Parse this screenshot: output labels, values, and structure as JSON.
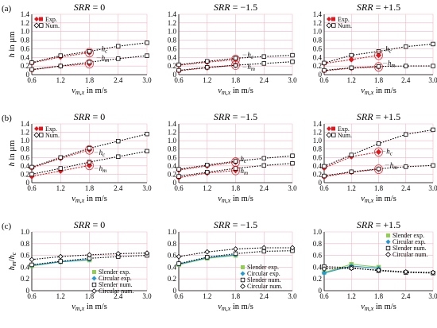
{
  "figure": {
    "background": "#ffffff"
  },
  "chart_data": [
    {
      "row": 0,
      "col": 0,
      "panel_label": "(a)",
      "title_var": "SRR",
      "title_rest": " = 0",
      "type": "line",
      "ylabel": "h in µm",
      "xlabel": "v",
      "xlabel_sub": "m,x",
      "xlabel_rest": " in m/s",
      "xlim": [
        0.6,
        3.0
      ],
      "ylim": [
        0,
        1.4
      ],
      "xticks": [
        "0.6",
        "1.2",
        "1.8",
        "2.4",
        "3.0"
      ],
      "yticks": [
        "0",
        "0.2",
        "0.4",
        "0.6",
        "0.8",
        "1.0",
        "1.2",
        "1.4"
      ],
      "legend": [
        "Exp.",
        "Num."
      ],
      "series": [
        {
          "name": "Exp.",
          "group": "hc",
          "kind": "exp",
          "x": [
            0.6,
            1.2,
            1.8
          ],
          "y": [
            0.27,
            0.41,
            0.51
          ]
        },
        {
          "name": "Exp.",
          "group": "hm",
          "kind": "exp",
          "x": [
            0.6,
            1.2,
            1.8
          ],
          "y": [
            0.11,
            0.2,
            0.25
          ]
        },
        {
          "name": "Num.",
          "group": "hc",
          "kind": "num",
          "x": [
            0.6,
            1.2,
            1.8,
            2.4,
            3.0
          ],
          "y": [
            0.28,
            0.44,
            0.54,
            0.66,
            0.74
          ]
        },
        {
          "name": "Num.",
          "group": "hm",
          "kind": "num",
          "x": [
            0.6,
            1.2,
            1.8,
            2.4,
            3.0
          ],
          "y": [
            0.12,
            0.2,
            0.29,
            0.37,
            0.44
          ]
        }
      ],
      "annotations": [
        {
          "text": "h",
          "sub": "c",
          "x": 2.05,
          "y": 0.6
        },
        {
          "text": "h",
          "sub": "m",
          "x": 2.05,
          "y": 0.39
        }
      ]
    },
    {
      "row": 0,
      "col": 1,
      "panel_label": "",
      "title_var": "SRR",
      "title_rest": " = −1.5",
      "type": "line",
      "ylabel": "",
      "xlabel": "v",
      "xlabel_sub": "m,x",
      "xlabel_rest": " in m/s",
      "xlim": [
        0.6,
        3.0
      ],
      "ylim": [
        0,
        1.4
      ],
      "xticks": [
        "0.6",
        "1.2",
        "1.8",
        "2.4",
        "3.0"
      ],
      "yticks": [
        "0",
        "0.2",
        "0.4",
        "0.6",
        "0.8",
        "1.0",
        "1.2",
        "1.4"
      ],
      "legend": [],
      "series": [
        {
          "name": "Exp.",
          "group": "hc",
          "kind": "exp",
          "x": [
            0.6,
            1.2,
            1.8
          ],
          "y": [
            0.22,
            0.29,
            0.35
          ]
        },
        {
          "name": "Exp.",
          "group": "hm",
          "kind": "exp",
          "x": [
            0.6,
            1.2,
            1.8
          ],
          "y": [
            0.09,
            0.16,
            0.22
          ]
        },
        {
          "name": "Num.",
          "group": "hc",
          "kind": "num",
          "x": [
            0.6,
            1.2,
            1.8,
            2.4,
            3.0
          ],
          "y": [
            0.23,
            0.31,
            0.38,
            0.42,
            0.45
          ]
        },
        {
          "name": "Num.",
          "group": "hm",
          "kind": "num",
          "x": [
            0.6,
            1.2,
            1.8,
            2.4,
            3.0
          ],
          "y": [
            0.1,
            0.17,
            0.22,
            0.26,
            0.3
          ]
        }
      ],
      "annotations": [
        {
          "text": "h",
          "sub": "c",
          "x": 2.05,
          "y": 0.46
        },
        {
          "text": "h",
          "sub": "m",
          "x": 2.05,
          "y": 0.18
        }
      ]
    },
    {
      "row": 0,
      "col": 2,
      "panel_label": "",
      "title_var": "SRR",
      "title_rest": " = +1.5",
      "type": "line",
      "ylabel": "",
      "xlabel": "v",
      "xlabel_sub": "m,x",
      "xlabel_rest": " in m/s",
      "xlim": [
        0.6,
        3.0
      ],
      "ylim": [
        0,
        1.4
      ],
      "xticks": [
        "0.6",
        "1.2",
        "1.8",
        "2.4",
        "3.0"
      ],
      "yticks": [
        "0",
        "0.2",
        "0.4",
        "0.6",
        "0.8",
        "1.0",
        "1.2",
        "1.4"
      ],
      "legend": [
        "Exp.",
        "Num."
      ],
      "series": [
        {
          "name": "Exp.",
          "group": "hc",
          "kind": "exp",
          "x": [
            0.6,
            1.2,
            1.8
          ],
          "y": [
            0.26,
            0.35,
            0.45
          ]
        },
        {
          "name": "Exp.",
          "group": "hm",
          "kind": "exp",
          "x": [
            0.6,
            1.2,
            1.8
          ],
          "y": [
            0.09,
            0.15,
            0.18
          ]
        },
        {
          "name": "Num.",
          "group": "hc",
          "kind": "num",
          "x": [
            0.6,
            1.2,
            1.8,
            2.4,
            3.0
          ],
          "y": [
            0.27,
            0.45,
            0.54,
            0.65,
            0.71
          ]
        },
        {
          "name": "Num.",
          "group": "hm",
          "kind": "num",
          "x": [
            0.6,
            1.2,
            1.8,
            2.4,
            3.0
          ],
          "y": [
            0.1,
            0.16,
            0.19,
            0.2,
            0.2
          ]
        }
      ],
      "annotations": [
        {
          "text": "h",
          "sub": "c",
          "x": 1.95,
          "y": 0.6
        },
        {
          "text": "h",
          "sub": "m",
          "x": 2.0,
          "y": 0.27
        }
      ]
    },
    {
      "row": 1,
      "col": 0,
      "panel_label": "(b)",
      "title_var": "SRR",
      "title_rest": " = 0",
      "type": "line",
      "ylabel": "h in µm",
      "xlabel": "v",
      "xlabel_sub": "m,x",
      "xlabel_rest": " in m/s",
      "xlim": [
        0.6,
        3.0
      ],
      "ylim": [
        0,
        1.4
      ],
      "xticks": [
        "0.6",
        "1.2",
        "1.8",
        "2.4",
        "3.0"
      ],
      "yticks": [
        "0",
        "0.2",
        "0.4",
        "0.6",
        "0.8",
        "1.0",
        "1.2",
        "1.4"
      ],
      "legend": [
        "Exp.",
        "Num."
      ],
      "series": [
        {
          "name": "Exp.",
          "group": "hc",
          "kind": "exp",
          "x": [
            0.6,
            1.2,
            1.8
          ],
          "y": [
            0.35,
            0.58,
            0.78
          ]
        },
        {
          "name": "Exp.",
          "group": "hm",
          "kind": "exp",
          "x": [
            0.6,
            1.2,
            1.8
          ],
          "y": [
            0.15,
            0.28,
            0.41
          ]
        },
        {
          "name": "Num.",
          "group": "hc",
          "kind": "num",
          "x": [
            0.6,
            1.2,
            1.8,
            2.4,
            3.0
          ],
          "y": [
            0.37,
            0.6,
            0.82,
            0.99,
            1.16
          ]
        },
        {
          "name": "Num.",
          "group": "hm",
          "kind": "num",
          "x": [
            0.6,
            1.2,
            1.8,
            2.4,
            3.0
          ],
          "y": [
            0.2,
            0.34,
            0.49,
            0.62,
            0.75
          ]
        }
      ],
      "annotations": [
        {
          "text": "h",
          "sub": "c",
          "x": 2.0,
          "y": 0.72
        },
        {
          "text": "h",
          "sub": "m",
          "x": 2.0,
          "y": 0.34
        }
      ]
    },
    {
      "row": 1,
      "col": 1,
      "panel_label": "",
      "title_var": "SRR",
      "title_rest": " = −1.5",
      "type": "line",
      "ylabel": "",
      "xlabel": "v",
      "xlabel_sub": "m,x",
      "xlabel_rest": " in m/s",
      "xlim": [
        0.6,
        3.0
      ],
      "ylim": [
        0,
        1.4
      ],
      "xticks": [
        "0.6",
        "1.2",
        "1.8",
        "2.4",
        "3.0"
      ],
      "yticks": [
        "0",
        "0.2",
        "0.4",
        "0.6",
        "0.8",
        "1.0",
        "1.2",
        "1.4"
      ],
      "legend": [],
      "series": [
        {
          "name": "Exp.",
          "group": "hc",
          "kind": "exp",
          "x": [
            0.6,
            1.2,
            1.8
          ],
          "y": [
            0.3,
            0.4,
            0.49
          ]
        },
        {
          "name": "Exp.",
          "group": "hm",
          "kind": "exp",
          "x": [
            0.6,
            1.2,
            1.8
          ],
          "y": [
            0.12,
            0.23,
            0.29
          ]
        },
        {
          "name": "Num.",
          "group": "hc",
          "kind": "num",
          "x": [
            0.6,
            1.2,
            1.8,
            2.4,
            3.0
          ],
          "y": [
            0.32,
            0.42,
            0.51,
            0.58,
            0.64
          ]
        },
        {
          "name": "Num.",
          "group": "hm",
          "kind": "num",
          "x": [
            0.6,
            1.2,
            1.8,
            2.4,
            3.0
          ],
          "y": [
            0.15,
            0.25,
            0.34,
            0.41,
            0.46
          ]
        }
      ],
      "annotations": [
        {
          "text": "h",
          "sub": "c",
          "x": 1.9,
          "y": 0.57
        },
        {
          "text": "h",
          "sub": "m",
          "x": 1.9,
          "y": 0.28
        }
      ]
    },
    {
      "row": 1,
      "col": 2,
      "panel_label": "",
      "title_var": "SRR",
      "title_rest": " = +1.5",
      "type": "line",
      "ylabel": "",
      "xlabel": "v",
      "xlabel_sub": "m,x",
      "xlabel_rest": " in m/s",
      "xlim": [
        0.6,
        3.0
      ],
      "ylim": [
        0,
        1.4
      ],
      "xticks": [
        "0.6",
        "1.2",
        "1.8",
        "2.4",
        "3.0"
      ],
      "yticks": [
        "0",
        "0.2",
        "0.4",
        "0.6",
        "0.8",
        "1.0",
        "1.2",
        "1.4"
      ],
      "legend": [
        "Exp.",
        "Num."
      ],
      "series": [
        {
          "name": "Exp.",
          "group": "hc",
          "kind": "exp",
          "x": [
            0.6,
            1.2,
            1.8
          ],
          "y": [
            0.35,
            0.62,
            0.73
          ]
        },
        {
          "name": "Exp.",
          "group": "hm",
          "kind": "exp",
          "x": [
            0.6,
            1.2,
            1.8
          ],
          "y": [
            0.14,
            0.25,
            0.32
          ]
        },
        {
          "name": "Num.",
          "group": "hc",
          "kind": "num",
          "x": [
            0.6,
            1.2,
            1.8,
            2.4,
            3.0
          ],
          "y": [
            0.39,
            0.66,
            0.93,
            1.15,
            1.26
          ]
        },
        {
          "name": "Num.",
          "group": "hm",
          "kind": "num",
          "x": [
            0.6,
            1.2,
            1.8,
            2.4,
            3.0
          ],
          "y": [
            0.16,
            0.26,
            0.33,
            0.38,
            0.41
          ]
        }
      ],
      "annotations": [
        {
          "text": "h",
          "sub": "c",
          "x": 1.97,
          "y": 0.75
        },
        {
          "text": "h",
          "sub": "m",
          "x": 2.05,
          "y": 0.42
        }
      ]
    },
    {
      "row": 2,
      "col": 0,
      "panel_label": "(c)",
      "title_var": "SRR",
      "title_rest": " = 0",
      "type": "line",
      "ylabel": "h_m/h_c",
      "xlabel": "v",
      "xlabel_sub": "m,x",
      "xlabel_rest": " in m/s",
      "xlim": [
        0.6,
        3.0
      ],
      "ylim": [
        0,
        1.0
      ],
      "xticks": [
        "0.6",
        "1.2",
        "1.8",
        "2.4",
        "3.0"
      ],
      "yticks": [
        "0",
        "0.2",
        "0.4",
        "0.6",
        "0.8",
        "1.0"
      ],
      "legend": [
        "Slender exp.",
        "Circular exp.",
        "Slender num.",
        "Circular num."
      ],
      "series": [
        {
          "name": "Slender exp.",
          "kind": "sexp",
          "x": [
            0.6,
            1.2,
            1.8
          ],
          "y": [
            0.42,
            0.49,
            0.52
          ]
        },
        {
          "name": "Circular exp.",
          "kind": "cexp",
          "x": [
            0.6,
            1.2,
            1.8
          ],
          "y": [
            0.43,
            0.49,
            0.53
          ]
        },
        {
          "name": "Slender num.",
          "kind": "snum",
          "x": [
            0.6,
            1.2,
            1.8,
            2.4,
            3.0
          ],
          "y": [
            0.44,
            0.5,
            0.55,
            0.58,
            0.6
          ]
        },
        {
          "name": "Circular num.",
          "kind": "cnum",
          "x": [
            0.6,
            1.2,
            1.8,
            2.4,
            3.0
          ],
          "y": [
            0.53,
            0.58,
            0.61,
            0.63,
            0.64
          ]
        }
      ],
      "annotations": []
    },
    {
      "row": 2,
      "col": 1,
      "panel_label": "",
      "title_var": "SRR",
      "title_rest": " = −1.5",
      "type": "line",
      "ylabel": "",
      "xlabel": "v",
      "xlabel_sub": "m,x",
      "xlabel_rest": " in m/s",
      "xlim": [
        0.6,
        3.0
      ],
      "ylim": [
        0,
        1.0
      ],
      "xticks": [
        "0.6",
        "1.2",
        "1.8",
        "2.4",
        "3.0"
      ],
      "yticks": [
        "0",
        "0.2",
        "0.4",
        "0.6",
        "0.8",
        "1.0"
      ],
      "legend": [
        "Slender exp.",
        "Circular exp.",
        "Slender num.",
        "Circular num."
      ],
      "series": [
        {
          "name": "Slender exp.",
          "kind": "sexp",
          "x": [
            0.6,
            1.2,
            1.8
          ],
          "y": [
            0.44,
            0.55,
            0.6
          ]
        },
        {
          "name": "Circular exp.",
          "kind": "cexp",
          "x": [
            0.6,
            1.2,
            1.8
          ],
          "y": [
            0.45,
            0.56,
            0.61
          ]
        },
        {
          "name": "Slender num.",
          "kind": "snum",
          "x": [
            0.6,
            1.2,
            1.8,
            2.4,
            3.0
          ],
          "y": [
            0.46,
            0.57,
            0.63,
            0.67,
            0.68
          ]
        },
        {
          "name": "Circular num.",
          "kind": "cnum",
          "x": [
            0.6,
            1.2,
            1.8,
            2.4,
            3.0
          ],
          "y": [
            0.58,
            0.66,
            0.71,
            0.73,
            0.73
          ]
        }
      ],
      "annotations": []
    },
    {
      "row": 2,
      "col": 2,
      "panel_label": "",
      "title_var": "SRR",
      "title_rest": " = +1.5",
      "type": "line",
      "ylabel": "",
      "xlabel": "v",
      "xlabel_sub": "m,x",
      "xlabel_rest": " in m/s",
      "xlim": [
        0.6,
        3.0
      ],
      "ylim": [
        0,
        1.0
      ],
      "xticks": [
        "0.6",
        "1.2",
        "1.8",
        "2.4",
        "3.0"
      ],
      "yticks": [
        "0",
        "0.2",
        "0.4",
        "0.6",
        "0.8",
        "1.0"
      ],
      "legend": [
        "Slender exp.",
        "Circular exp.",
        "Slender num.",
        "Circular num."
      ],
      "series": [
        {
          "name": "Slender exp.",
          "kind": "sexp",
          "x": [
            0.6,
            1.2,
            1.8
          ],
          "y": [
            0.31,
            0.45,
            0.4
          ]
        },
        {
          "name": "Circular exp.",
          "kind": "cexp",
          "x": [
            0.6,
            1.2,
            1.8
          ],
          "y": [
            0.3,
            0.42,
            0.38
          ]
        },
        {
          "name": "Slender num.",
          "kind": "snum",
          "x": [
            0.6,
            1.2,
            1.8,
            2.4,
            3.0
          ],
          "y": [
            0.41,
            0.39,
            0.34,
            0.31,
            0.3
          ]
        },
        {
          "name": "Circular num.",
          "kind": "cnum",
          "x": [
            0.6,
            1.2,
            1.8,
            2.4,
            3.0
          ],
          "y": [
            0.37,
            0.38,
            0.35,
            0.32,
            0.31
          ]
        }
      ],
      "annotations": []
    }
  ],
  "colors": {
    "exp_marker": "#e8141b",
    "exp_line": "#e8141b",
    "num_marker": "#000000",
    "grid": "#f3b5c3",
    "slender_exp": "#8fd14f",
    "circular_exp": "#1f9ad6",
    "annotation_line": "#888888"
  }
}
